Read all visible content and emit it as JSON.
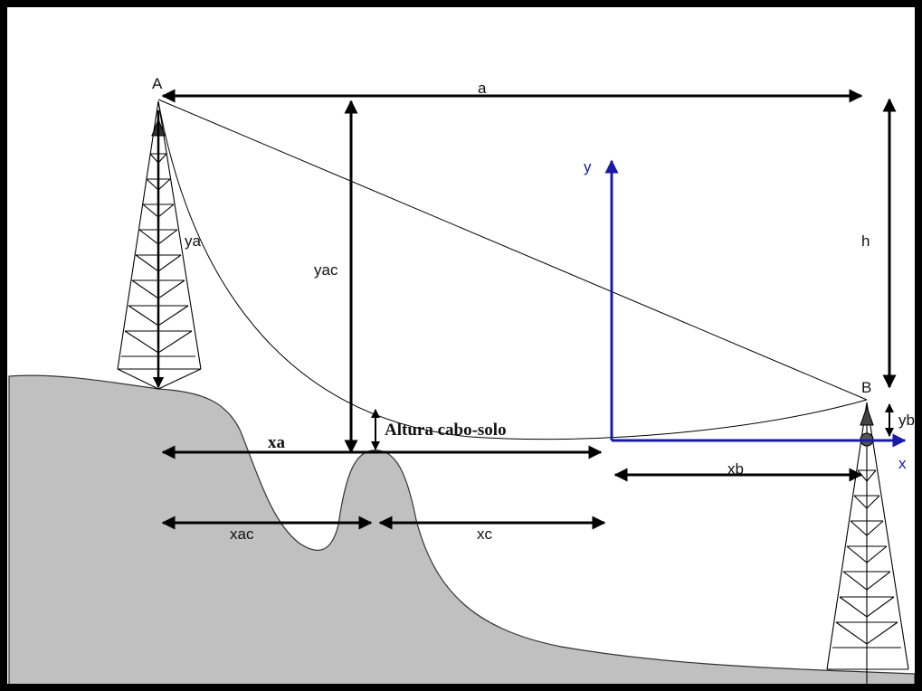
{
  "labels": {
    "a": "a",
    "A": "A",
    "B": "B",
    "h": "h",
    "ya": "ya",
    "yac": "yac",
    "yb": "yb",
    "y": "y",
    "x": "x",
    "xa": "xa",
    "xb": "xb",
    "xc": "xc",
    "xac": "xac",
    "altura": "Altura cabo-solo"
  },
  "colors": {
    "ground": "#c0c0c0",
    "axis": "#1a1aa8",
    "ink": "#000000"
  }
}
